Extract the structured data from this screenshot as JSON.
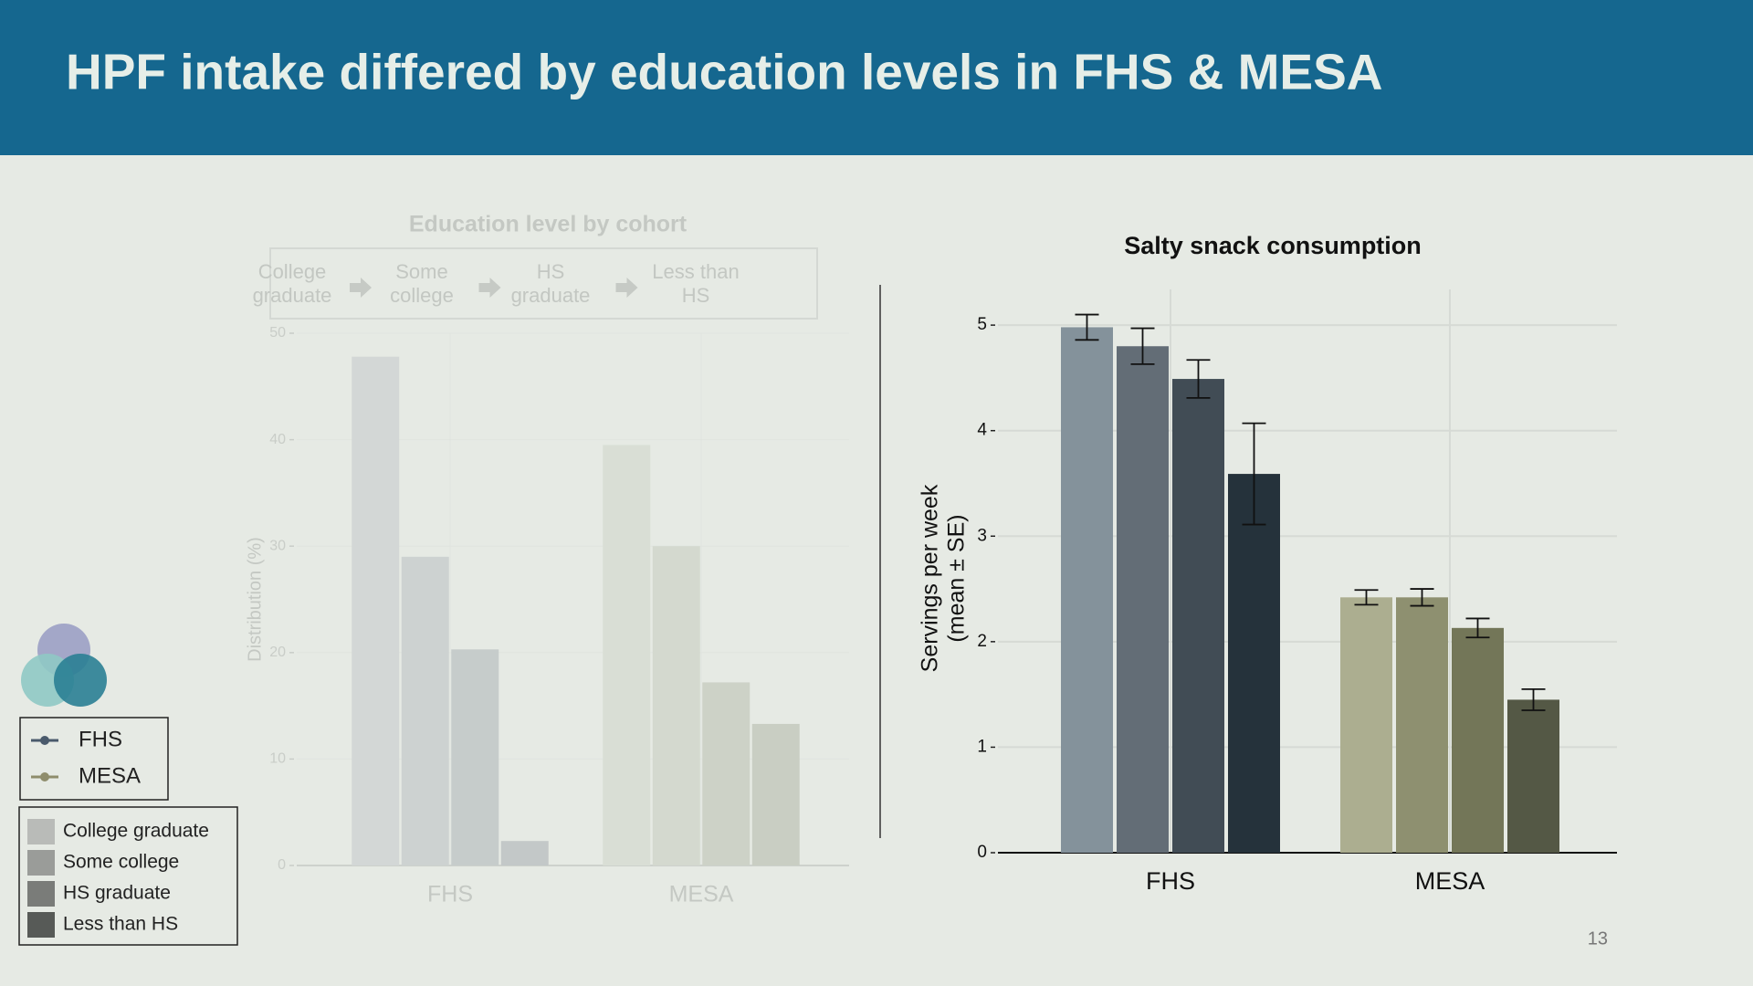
{
  "slide": {
    "title": "HPF intake differed by education levels in FHS & MESA",
    "page_number": "13"
  },
  "legends": {
    "cohorts": {
      "labels": [
        "FHS",
        "MESA"
      ],
      "colors": [
        "#4a5a6c",
        "#8f8d6c"
      ]
    },
    "education": {
      "labels": [
        "College graduate",
        "Some college",
        "HS graduate",
        "Less than HS"
      ],
      "colors": [
        "#b9bbb8",
        "#9a9c99",
        "#7a7c79",
        "#575a57"
      ]
    }
  },
  "chart_data": [
    {
      "type": "bar",
      "title": "Education level by cohort",
      "series_flow": true,
      "y_label": [
        "Distribution (%)"
      ],
      "categories": [
        "FHS",
        "MESA"
      ],
      "series": [
        {
          "name": "College graduate",
          "colors": [
            "#d3d7d6",
            "#d9ded5"
          ],
          "values": [
            47.8,
            39.5
          ]
        },
        {
          "name": "Some college",
          "colors": [
            "#cdd2d1",
            "#d4d9cf"
          ],
          "values": [
            29,
            30
          ]
        },
        {
          "name": "HS graduate",
          "colors": [
            "#c6cccb",
            "#cdd2c7"
          ],
          "values": [
            20.3,
            17.2
          ]
        },
        {
          "name": "Less than HS",
          "colors": [
            "#c3c8c8",
            "#c9cec3"
          ],
          "values": [
            2.3,
            13.3
          ]
        }
      ],
      "ylim": [
        0,
        50
      ],
      "yticks": [
        0,
        10,
        20,
        30,
        40,
        50
      ],
      "grid": true
    },
    {
      "type": "bar",
      "title": "Salty snack consumption",
      "y_label": [
        "Servings per week",
        "(mean ± SE)"
      ],
      "categories": [
        "FHS",
        "MESA"
      ],
      "series": [
        {
          "name": "College graduate",
          "colors": [
            "#84929b",
            "#acae90"
          ],
          "values": [
            4.98,
            2.42
          ],
          "errors": [
            0.12,
            0.07
          ]
        },
        {
          "name": "Some college",
          "colors": [
            "#636d76",
            "#8e9070"
          ],
          "values": [
            4.8,
            2.42
          ],
          "errors": [
            0.17,
            0.08
          ]
        },
        {
          "name": "HS graduate",
          "colors": [
            "#414c55",
            "#737658"
          ],
          "values": [
            4.49,
            2.13
          ],
          "errors": [
            0.18,
            0.09
          ]
        },
        {
          "name": "Less than HS",
          "colors": [
            "#25323b",
            "#545845"
          ],
          "values": [
            3.59,
            1.45
          ],
          "errors": [
            0.48,
            0.1
          ]
        }
      ],
      "ylim": [
        0,
        5.2
      ],
      "yticks": [
        0,
        1,
        2,
        3,
        4,
        5
      ],
      "grid": true
    }
  ]
}
